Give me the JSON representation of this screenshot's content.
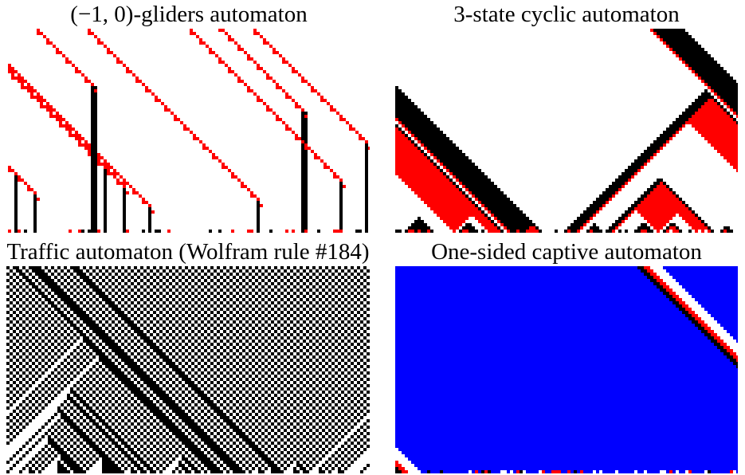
{
  "panels": [
    {
      "id": "gliders",
      "title": "(−1, 0)-gliders automaton",
      "palette": [
        "#ffffff",
        "#000000",
        "#ff0000"
      ]
    },
    {
      "id": "cyclic",
      "title": "3-state cyclic automaton",
      "palette": [
        "#000000",
        "#ffffff",
        "#ff0000"
      ]
    },
    {
      "id": "traffic",
      "title": "Traffic automaton (Wolfram rule #184)",
      "palette": [
        "#ffffff",
        "#000000"
      ]
    },
    {
      "id": "captive",
      "title": "One-sided captive automaton",
      "palette": [
        "#0000ff",
        "#ffffff",
        "#ff0000",
        "#000000"
      ]
    }
  ]
}
